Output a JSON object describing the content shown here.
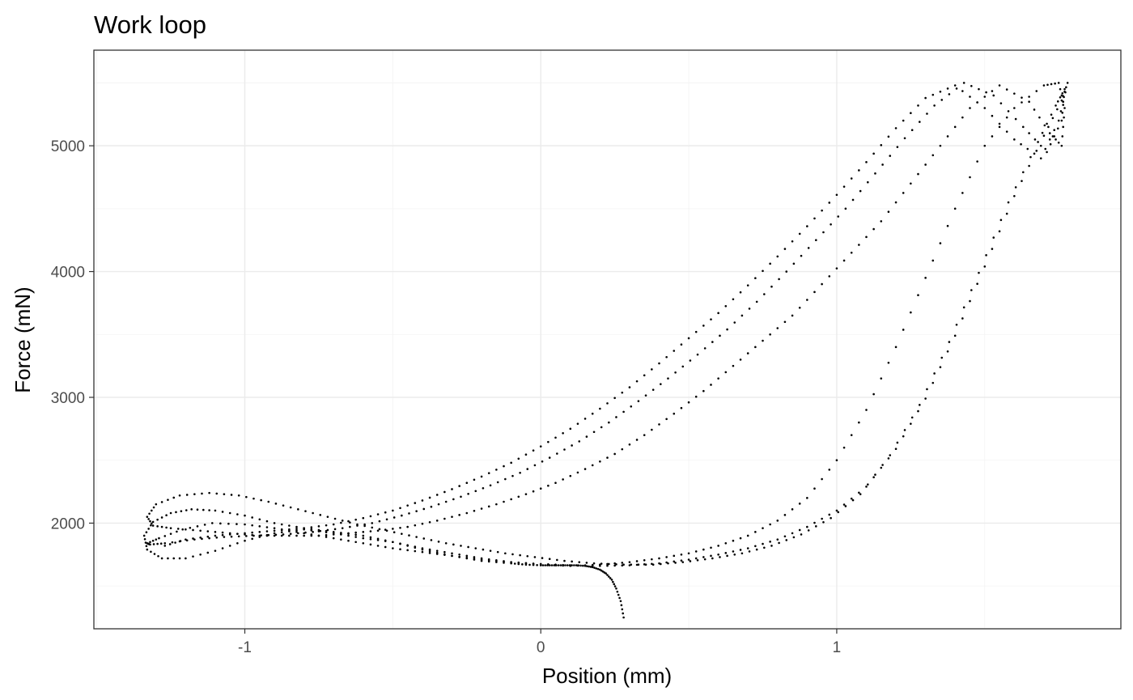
{
  "chart_data": {
    "type": "scatter",
    "title": "Work loop",
    "xlabel": "Position (mm)",
    "ylabel": "Force (mN)",
    "xlim": [
      -1.51,
      1.96
    ],
    "ylim": [
      1160,
      5760
    ],
    "x_ticks": [
      -1,
      0,
      1
    ],
    "x_tick_labels": [
      "-1",
      "0",
      "1"
    ],
    "y_ticks": [
      2000,
      3000,
      4000,
      5000
    ],
    "y_tick_labels": [
      "2000",
      "3000",
      "4000",
      "5000"
    ],
    "grid": true,
    "legend": "none",
    "point_color": "#000000",
    "description_of_data": "Three force–position work-loop cycles sampled densely, plus an initial transient ending near (0.28, 1250).",
    "series": [
      {
        "name": "",
        "x": [
          0.28,
          0.27,
          0.255,
          0.24,
          0.22,
          0.2,
          0.175,
          0.15,
          0.12,
          0.09,
          0.06,
          0.03,
          0.0,
          -0.05,
          -0.1,
          -0.2,
          -0.3,
          -0.4,
          -0.5,
          -0.6,
          -0.7,
          -0.8,
          -0.9,
          -1.0,
          -1.1,
          -1.2,
          -1.28,
          -1.33,
          -1.34,
          -1.31,
          -1.25,
          -1.18,
          -1.1,
          -1.0,
          -0.9,
          -0.8,
          -0.7,
          -0.6,
          -0.5,
          -0.4,
          -0.3,
          -0.2,
          -0.1,
          0.0,
          0.1,
          0.2,
          0.3,
          0.4,
          0.5,
          0.6,
          0.7,
          0.8,
          0.9,
          1.0,
          1.1,
          1.2,
          1.3,
          1.4,
          1.5,
          1.6,
          1.7,
          1.75,
          1.77,
          1.76,
          1.72,
          1.65,
          1.55,
          1.45,
          1.35,
          1.25,
          1.15,
          1.05,
          0.95,
          0.85,
          0.75,
          0.65,
          0.55,
          0.45,
          0.35,
          0.25,
          0.15,
          0.05,
          -0.05,
          -0.15,
          -0.25,
          -0.35,
          -0.45,
          -0.55,
          -0.65,
          -0.75,
          -0.85,
          -0.95,
          -1.05,
          -1.15,
          -1.25,
          -1.31,
          -1.33,
          -1.3,
          -1.22,
          -1.12,
          -1.02,
          -0.92,
          -0.82,
          -0.72,
          -0.62,
          -0.52,
          -0.42,
          -0.32,
          -0.22,
          -0.12,
          -0.02,
          0.08,
          0.18,
          0.28,
          0.38,
          0.48,
          0.58,
          0.68,
          0.78,
          0.88,
          0.98,
          1.08,
          1.18,
          1.28,
          1.38,
          1.48,
          1.58,
          1.68,
          1.74,
          1.77,
          1.76,
          1.71,
          1.63,
          1.53,
          1.43,
          1.33,
          1.23,
          1.13,
          1.03,
          0.93,
          0.83,
          0.73,
          0.63,
          0.53,
          0.43,
          0.33,
          0.23,
          0.13,
          0.03,
          -0.07,
          -0.17,
          -0.27,
          -0.37,
          -0.47,
          -0.57,
          -0.67,
          -0.77,
          -0.87,
          -0.97,
          -1.07,
          -1.17,
          -1.27,
          -1.32,
          -1.33,
          -1.29,
          -1.21,
          -1.11,
          -1.0,
          -0.9,
          -0.8,
          -0.7,
          -0.6,
          -0.5,
          -0.4,
          -0.3,
          -0.2,
          -0.1,
          0.0,
          0.1,
          0.2,
          0.3,
          0.4,
          0.5,
          0.6,
          0.7,
          0.8,
          0.9,
          1.0,
          1.1,
          1.2,
          1.3,
          1.4,
          1.5,
          1.6,
          1.7,
          1.76,
          1.78,
          1.75,
          1.69,
          1.6,
          1.5,
          1.4,
          1.3,
          1.2,
          1.1,
          1.0,
          0.9,
          0.8,
          0.7,
          0.6,
          0.5,
          0.4,
          0.3,
          0.2,
          0.1,
          0.0,
          -0.1,
          -0.2,
          -0.3,
          -0.4,
          -0.5,
          -0.6,
          -0.7,
          -0.8,
          -0.9,
          -1.0,
          -1.1,
          -1.2,
          -1.27
        ],
        "y": [
          1250,
          1380,
          1480,
          1550,
          1600,
          1630,
          1650,
          1660,
          1665,
          1665,
          1665,
          1665,
          1665,
          1670,
          1680,
          1700,
          1740,
          1790,
          1850,
          1880,
          1920,
          1950,
          1920,
          1860,
          1780,
          1720,
          1720,
          1790,
          1900,
          2010,
          2080,
          2110,
          2100,
          2060,
          2000,
          1960,
          1930,
          1900,
          1850,
          1800,
          1760,
          1720,
          1690,
          1670,
          1660,
          1670,
          1690,
          1720,
          1760,
          1820,
          1900,
          2020,
          2200,
          2500,
          2900,
          3400,
          3950,
          4500,
          5000,
          5300,
          5480,
          5500,
          5300,
          5000,
          5100,
          5350,
          5480,
          5300,
          5000,
          4700,
          4400,
          4150,
          3900,
          3650,
          3450,
          3250,
          3050,
          2870,
          2700,
          2550,
          2430,
          2320,
          2230,
          2150,
          2080,
          2020,
          1970,
          1940,
          1920,
          1900,
          1900,
          1900,
          1920,
          1940,
          1960,
          1980,
          2050,
          2150,
          2220,
          2240,
          2220,
          2170,
          2110,
          2050,
          1990,
          1940,
          1890,
          1840,
          1800,
          1760,
          1730,
          1700,
          1680,
          1670,
          1670,
          1690,
          1720,
          1760,
          1820,
          1910,
          2040,
          2230,
          2540,
          2940,
          3440,
          3990,
          4550,
          5030,
          5320,
          5450,
          5200,
          4950,
          5150,
          5400,
          5500,
          5320,
          5060,
          4780,
          4500,
          4250,
          4000,
          3760,
          3540,
          3340,
          3150,
          2970,
          2800,
          2650,
          2520,
          2400,
          2300,
          2210,
          2130,
          2060,
          2000,
          1960,
          1930,
          1910,
          1900,
          1890,
          1870,
          1840,
          1830,
          1840,
          1880,
          1950,
          2000,
          1990,
          1960,
          1920,
          1880,
          1840,
          1800,
          1770,
          1740,
          1710,
          1690,
          1675,
          1665,
          1660,
          1665,
          1680,
          1710,
          1750,
          1800,
          1870,
          1970,
          2100,
          2290,
          2590,
          2990,
          3490,
          4040,
          4600,
          5080,
          5360,
          5500,
          5200,
          4900,
          5050,
          5300,
          5480,
          5380,
          5140,
          4870,
          4610,
          4360,
          4120,
          3890,
          3670,
          3470,
          3270,
          3080,
          2910,
          2750,
          2610,
          2480,
          2370,
          2270,
          2180,
          2100,
          2040,
          1990,
          1960,
          1940,
          1920,
          1900,
          1870,
          1820
        ]
      }
    ]
  }
}
